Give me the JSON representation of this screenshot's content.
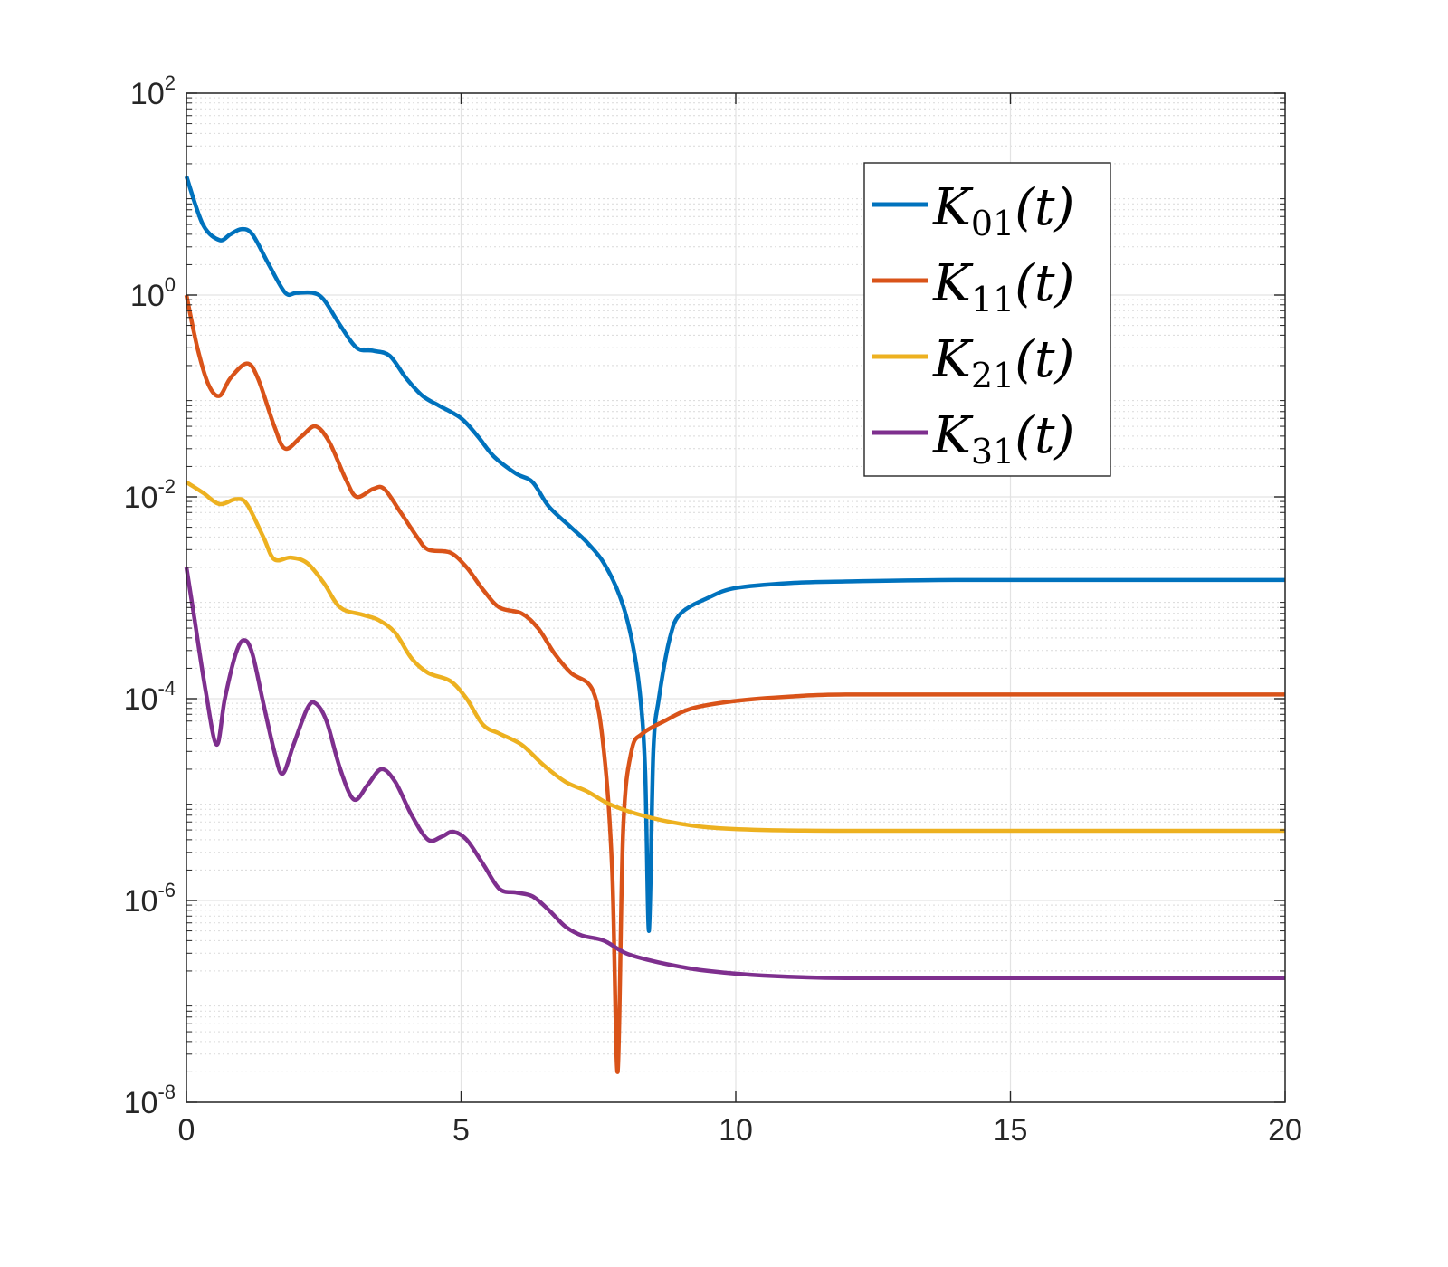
{
  "chart_data": {
    "type": "line",
    "title": "",
    "xlabel": "",
    "ylabel": "",
    "xlim": [
      0,
      20
    ],
    "ylim": [
      1e-08,
      100
    ],
    "yscale": "log",
    "grid": true,
    "minor_grid": true,
    "legend_position": "top-right",
    "x_ticks": [
      "0",
      "5",
      "10",
      "15",
      "20"
    ],
    "y_ticks": [
      {
        "base": "10",
        "exp": "-8"
      },
      {
        "base": "10",
        "exp": "-6"
      },
      {
        "base": "10",
        "exp": "-4"
      },
      {
        "base": "10",
        "exp": "-2"
      },
      {
        "base": "10",
        "exp": "0"
      },
      {
        "base": "10",
        "exp": "2"
      }
    ],
    "series": [
      {
        "name": "K01(t)",
        "legend": {
          "main": "K",
          "sub": "01",
          "arg": "(t)"
        },
        "color": "#0072BD",
        "points": [
          [
            0,
            15
          ],
          [
            0.3,
            5
          ],
          [
            0.6,
            3.5
          ],
          [
            0.8,
            4
          ],
          [
            1.0,
            4.5
          ],
          [
            1.2,
            4
          ],
          [
            1.5,
            2
          ],
          [
            1.8,
            1.05
          ],
          [
            2.0,
            1.05
          ],
          [
            2.3,
            1.05
          ],
          [
            2.5,
            0.9
          ],
          [
            2.8,
            0.5
          ],
          [
            3.1,
            0.3
          ],
          [
            3.4,
            0.28
          ],
          [
            3.7,
            0.25
          ],
          [
            4.0,
            0.15
          ],
          [
            4.3,
            0.1
          ],
          [
            4.6,
            0.08
          ],
          [
            5.0,
            0.06
          ],
          [
            5.3,
            0.04
          ],
          [
            5.6,
            0.025
          ],
          [
            6.0,
            0.017
          ],
          [
            6.3,
            0.014
          ],
          [
            6.6,
            0.008
          ],
          [
            7.0,
            0.005
          ],
          [
            7.3,
            0.0035
          ],
          [
            7.6,
            0.0022
          ],
          [
            7.9,
            0.001
          ],
          [
            8.1,
            0.0004
          ],
          [
            8.25,
            0.00012
          ],
          [
            8.35,
            2e-05
          ],
          [
            8.42,
            5e-07
          ],
          [
            8.5,
            3e-05
          ],
          [
            8.6,
            0.0001
          ],
          [
            8.8,
            0.0004
          ],
          [
            9.0,
            0.0007
          ],
          [
            9.5,
            0.001
          ],
          [
            10.0,
            0.00125
          ],
          [
            11.0,
            0.0014
          ],
          [
            12.0,
            0.00145
          ],
          [
            14.0,
            0.0015
          ],
          [
            17.0,
            0.0015
          ],
          [
            20.0,
            0.0015
          ]
        ]
      },
      {
        "name": "K11(t)",
        "legend": {
          "main": "K",
          "sub": "11",
          "arg": "(t)"
        },
        "color": "#D95319",
        "points": [
          [
            0,
            1.0
          ],
          [
            0.2,
            0.3
          ],
          [
            0.4,
            0.13
          ],
          [
            0.6,
            0.1
          ],
          [
            0.8,
            0.15
          ],
          [
            1.1,
            0.21
          ],
          [
            1.3,
            0.15
          ],
          [
            1.6,
            0.05
          ],
          [
            1.8,
            0.03
          ],
          [
            2.1,
            0.04
          ],
          [
            2.35,
            0.05
          ],
          [
            2.6,
            0.035
          ],
          [
            2.9,
            0.015
          ],
          [
            3.1,
            0.01
          ],
          [
            3.4,
            0.012
          ],
          [
            3.6,
            0.012
          ],
          [
            3.9,
            0.007
          ],
          [
            4.2,
            0.004
          ],
          [
            4.4,
            0.003
          ],
          [
            4.8,
            0.0028
          ],
          [
            5.1,
            0.002
          ],
          [
            5.4,
            0.0012
          ],
          [
            5.7,
            0.0008
          ],
          [
            6.1,
            0.0007
          ],
          [
            6.4,
            0.0005
          ],
          [
            6.7,
            0.00028
          ],
          [
            7.0,
            0.00018
          ],
          [
            7.4,
            0.00012
          ],
          [
            7.6,
            3e-05
          ],
          [
            7.75,
            2e-06
          ],
          [
            7.85,
            2e-08
          ],
          [
            7.95,
            5e-06
          ],
          [
            8.1,
            3e-05
          ],
          [
            8.3,
            4.5e-05
          ],
          [
            8.7,
            6e-05
          ],
          [
            9.2,
            8e-05
          ],
          [
            10.0,
            9.5e-05
          ],
          [
            11.0,
            0.000105
          ],
          [
            12.0,
            0.00011
          ],
          [
            15.0,
            0.00011
          ],
          [
            20.0,
            0.00011
          ]
        ]
      },
      {
        "name": "K21(t)",
        "legend": {
          "main": "K",
          "sub": "21",
          "arg": "(t)"
        },
        "color": "#EDB120",
        "points": [
          [
            0,
            0.014
          ],
          [
            0.3,
            0.011
          ],
          [
            0.6,
            0.0085
          ],
          [
            0.9,
            0.0095
          ],
          [
            1.1,
            0.0085
          ],
          [
            1.4,
            0.004
          ],
          [
            1.6,
            0.0024
          ],
          [
            1.9,
            0.0025
          ],
          [
            2.2,
            0.0022
          ],
          [
            2.5,
            0.0014
          ],
          [
            2.8,
            0.0008
          ],
          [
            3.2,
            0.00068
          ],
          [
            3.5,
            0.0006
          ],
          [
            3.8,
            0.00045
          ],
          [
            4.1,
            0.00025
          ],
          [
            4.4,
            0.00018
          ],
          [
            4.8,
            0.00015
          ],
          [
            5.1,
            0.0001
          ],
          [
            5.4,
            5.5e-05
          ],
          [
            5.7,
            4.5e-05
          ],
          [
            6.1,
            3.5e-05
          ],
          [
            6.5,
            2.2e-05
          ],
          [
            6.9,
            1.5e-05
          ],
          [
            7.3,
            1.2e-05
          ],
          [
            7.7,
            9e-06
          ],
          [
            8.2,
            7.2e-06
          ],
          [
            8.8,
            6e-06
          ],
          [
            9.5,
            5.3e-06
          ],
          [
            10.5,
            5e-06
          ],
          [
            12.0,
            4.9e-06
          ],
          [
            15.0,
            4.9e-06
          ],
          [
            20.0,
            4.9e-06
          ]
        ]
      },
      {
        "name": "K31(t)",
        "legend": {
          "main": "K",
          "sub": "31",
          "arg": "(t)"
        },
        "color": "#7E2F8E",
        "points": [
          [
            0,
            0.002
          ],
          [
            0.15,
            0.0006
          ],
          [
            0.35,
            0.00012
          ],
          [
            0.55,
            3.5e-05
          ],
          [
            0.7,
            0.0001
          ],
          [
            0.9,
            0.00028
          ],
          [
            1.05,
            0.00038
          ],
          [
            1.2,
            0.00028
          ],
          [
            1.4,
            9e-05
          ],
          [
            1.6,
            3e-05
          ],
          [
            1.75,
            1.8e-05
          ],
          [
            1.95,
            3.5e-05
          ],
          [
            2.2,
            8e-05
          ],
          [
            2.35,
            9e-05
          ],
          [
            2.55,
            6e-05
          ],
          [
            2.8,
            2e-05
          ],
          [
            3.05,
            1e-05
          ],
          [
            3.3,
            1.4e-05
          ],
          [
            3.55,
            2e-05
          ],
          [
            3.8,
            1.5e-05
          ],
          [
            4.1,
            7e-06
          ],
          [
            4.4,
            4e-06
          ],
          [
            4.65,
            4.3e-06
          ],
          [
            4.85,
            4.8e-06
          ],
          [
            5.1,
            4e-06
          ],
          [
            5.4,
            2.3e-06
          ],
          [
            5.7,
            1.3e-06
          ],
          [
            6.0,
            1.2e-06
          ],
          [
            6.3,
            1.1e-06
          ],
          [
            6.6,
            8e-07
          ],
          [
            6.9,
            5.5e-07
          ],
          [
            7.2,
            4.5e-07
          ],
          [
            7.6,
            4e-07
          ],
          [
            8.0,
            3e-07
          ],
          [
            8.5,
            2.5e-07
          ],
          [
            9.0,
            2.2e-07
          ],
          [
            9.5,
            2e-07
          ],
          [
            10.5,
            1.8e-07
          ],
          [
            12.0,
            1.7e-07
          ],
          [
            15.0,
            1.7e-07
          ],
          [
            20.0,
            1.7e-07
          ]
        ]
      }
    ]
  }
}
